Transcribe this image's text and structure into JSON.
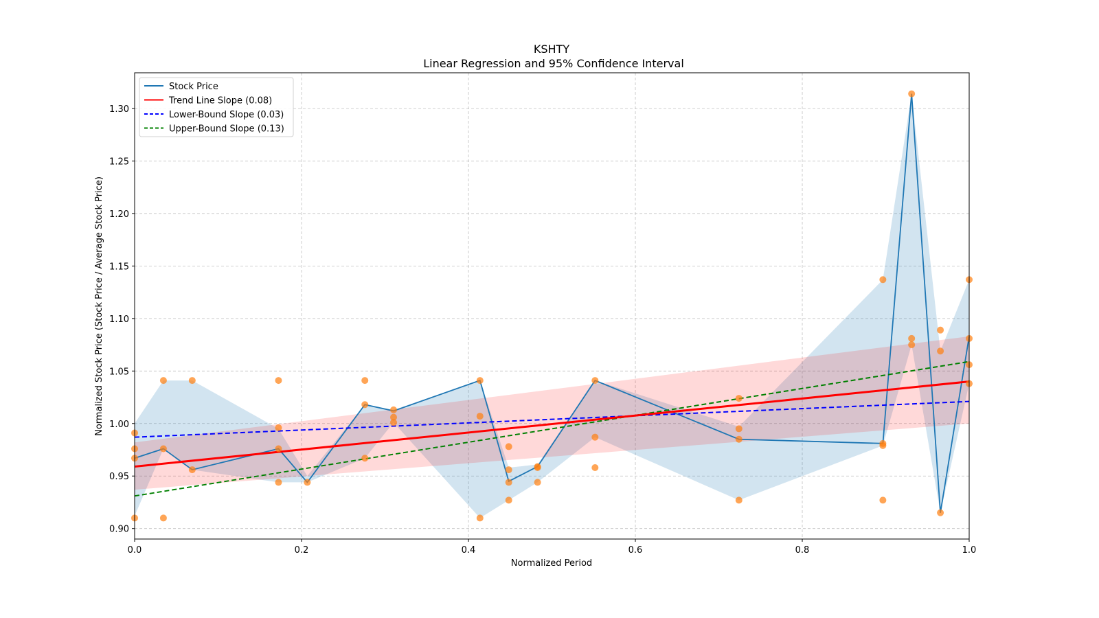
{
  "chart_data": {
    "type": "line",
    "title": "KSHTY",
    "subtitle": "Linear Regression and 95% Confidence Interval",
    "xlabel": "Normalized Period",
    "ylabel": "Normalized Stock Price (Stock Price / Average Stock Price)",
    "xlim": [
      0,
      1
    ],
    "ylim": [
      0.89,
      1.334
    ],
    "grid": true,
    "legend_position": "top-left",
    "x_ticks": [
      "0.0",
      "0.2",
      "0.4",
      "0.6",
      "0.8",
      "1.0"
    ],
    "x_tick_values": [
      0,
      0.2,
      0.4,
      0.6,
      0.8,
      1.0
    ],
    "y_ticks": [
      "0.90",
      "0.95",
      "1.00",
      "1.05",
      "1.10",
      "1.15",
      "1.20",
      "1.25",
      "1.30"
    ],
    "y_tick_values": [
      0.9,
      0.95,
      1.0,
      1.05,
      1.1,
      1.15,
      1.2,
      1.25,
      1.3
    ],
    "legend": [
      {
        "label": "Stock Price",
        "color": "#1f77b4",
        "dash": false
      },
      {
        "label": "Trend Line Slope (0.08)",
        "color": "#ff0000",
        "dash": false
      },
      {
        "label": "Lower-Bound Slope (0.03)",
        "color": "#0000ff",
        "dash": true
      },
      {
        "label": "Upper-Bound Slope (0.13)",
        "color": "#008000",
        "dash": true
      }
    ],
    "stock_price": {
      "x": [
        0,
        0.0345,
        0.069,
        0.1724,
        0.2069,
        0.2759,
        0.3103,
        0.4138,
        0.4483,
        0.4828,
        0.5517,
        0.7241,
        0.8966,
        0.931,
        0.9655,
        1.0
      ],
      "y": [
        0.967,
        0.976,
        0.956,
        0.976,
        0.944,
        1.018,
        1.012,
        1.041,
        0.945,
        0.959,
        1.041,
        0.985,
        0.981,
        1.314,
        0.915,
        1.083
      ],
      "band_upper": [
        1.0,
        1.041,
        1.041,
        0.995,
        0.95,
        1.018,
        1.013,
        1.041,
        0.958,
        0.961,
        1.041,
        0.997,
        1.137,
        1.314,
        1.069,
        1.137
      ],
      "band_lower": [
        0.912,
        0.976,
        0.956,
        0.944,
        0.944,
        0.967,
        1.001,
        0.91,
        0.927,
        0.944,
        0.987,
        0.927,
        0.979,
        1.075,
        0.915,
        1.038
      ]
    },
    "scatter": [
      [
        0,
        0.991
      ],
      [
        0,
        0.976
      ],
      [
        0,
        0.967
      ],
      [
        0,
        0.91
      ],
      [
        0.0345,
        1.041
      ],
      [
        0.0345,
        0.976
      ],
      [
        0.0345,
        0.91
      ],
      [
        0.069,
        1.041
      ],
      [
        0.069,
        0.956
      ],
      [
        0.1724,
        1.041
      ],
      [
        0.1724,
        0.996
      ],
      [
        0.1724,
        0.976
      ],
      [
        0.1724,
        0.944
      ],
      [
        0.2069,
        0.944
      ],
      [
        0.2759,
        1.041
      ],
      [
        0.2759,
        1.018
      ],
      [
        0.2759,
        0.967
      ],
      [
        0.3103,
        1.013
      ],
      [
        0.3103,
        1.006
      ],
      [
        0.3103,
        1.001
      ],
      [
        0.4138,
        1.041
      ],
      [
        0.4138,
        1.007
      ],
      [
        0.4138,
        0.91
      ],
      [
        0.4483,
        0.978
      ],
      [
        0.4483,
        0.956
      ],
      [
        0.4483,
        0.944
      ],
      [
        0.4483,
        0.927
      ],
      [
        0.4828,
        0.959
      ],
      [
        0.4828,
        0.958
      ],
      [
        0.4828,
        0.944
      ],
      [
        0.5517,
        1.041
      ],
      [
        0.5517,
        0.987
      ],
      [
        0.5517,
        0.958
      ],
      [
        0.7241,
        1.024
      ],
      [
        0.7241,
        0.995
      ],
      [
        0.7241,
        0.985
      ],
      [
        0.7241,
        0.927
      ],
      [
        0.8966,
        1.137
      ],
      [
        0.8966,
        0.981
      ],
      [
        0.8966,
        0.979
      ],
      [
        0.8966,
        0.927
      ],
      [
        0.931,
        1.314
      ],
      [
        0.931,
        1.081
      ],
      [
        0.931,
        1.075
      ],
      [
        0.9655,
        1.089
      ],
      [
        0.9655,
        1.069
      ],
      [
        0.9655,
        0.915
      ],
      [
        1.0,
        1.137
      ],
      [
        1.0,
        1.081
      ],
      [
        1.0,
        1.056
      ],
      [
        1.0,
        1.038
      ]
    ],
    "trend_line": {
      "slope": 0.08,
      "y0": 0.959,
      "y1": 1.04
    },
    "trend_band": {
      "lower0": 0.937,
      "upper0": 0.982,
      "lower1": 1.0,
      "upper1": 1.083
    },
    "lower_bound_line": {
      "slope": 0.03,
      "y0": 0.987,
      "y1": 1.021
    },
    "upper_bound_line": {
      "slope": 0.13,
      "y0": 0.931,
      "y1": 1.059
    }
  }
}
